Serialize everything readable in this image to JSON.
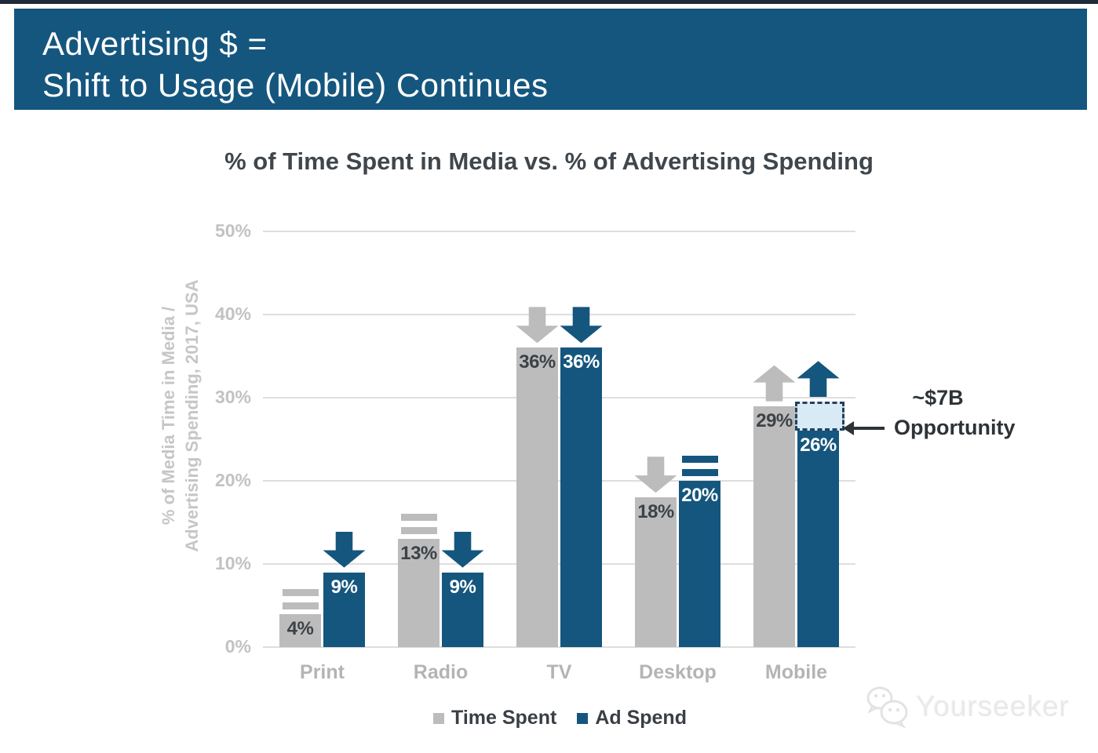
{
  "top_banner": {
    "title_line1": "Advertising $ =",
    "title_line2": "Shift to Usage (Mobile) Continues",
    "bg_color": "#15567e"
  },
  "chart_data": {
    "type": "bar",
    "title": "% of Time Spent in Media vs. % of Advertising Spending",
    "ylabel_line1": "% of Media Time in Media /",
    "ylabel_line2": "Advertising Spending, 2017, USA",
    "categories": [
      "Print",
      "Radio",
      "TV",
      "Desktop",
      "Mobile"
    ],
    "series": [
      {
        "name": "Time Spent",
        "color": "#bcbcbc",
        "values": [
          4,
          13,
          36,
          18,
          29
        ],
        "value_labels": [
          "4%",
          "13%",
          "36%",
          "18%",
          "29%"
        ],
        "trends": [
          "equal",
          "equal",
          "down",
          "down",
          "up"
        ]
      },
      {
        "name": "Ad Spend",
        "color": "#15567e",
        "values": [
          9,
          9,
          36,
          20,
          26
        ],
        "value_labels": [
          "9%",
          "9%",
          "36%",
          "20%",
          "26%"
        ],
        "trends": [
          "down",
          "down",
          "down",
          "equal",
          "up"
        ]
      }
    ],
    "ylim": [
      0,
      50
    ],
    "yticks": [
      0,
      10,
      20,
      30,
      40,
      50
    ],
    "ytick_labels": [
      "0%",
      "10%",
      "20%",
      "30%",
      "40%",
      "50%"
    ],
    "grid": true,
    "legend_position": "bottom",
    "opportunity": {
      "category_index": 4,
      "series_index": 1,
      "from_value": 26,
      "to_value": 29.5,
      "label_line1": "~$7B",
      "label_line2": "Opportunity",
      "fill_color": "#d8eaf6",
      "border_color": "#24415e"
    }
  },
  "watermark": {
    "text": "Yourseeker",
    "icon": "chat-bubbles-icon"
  }
}
